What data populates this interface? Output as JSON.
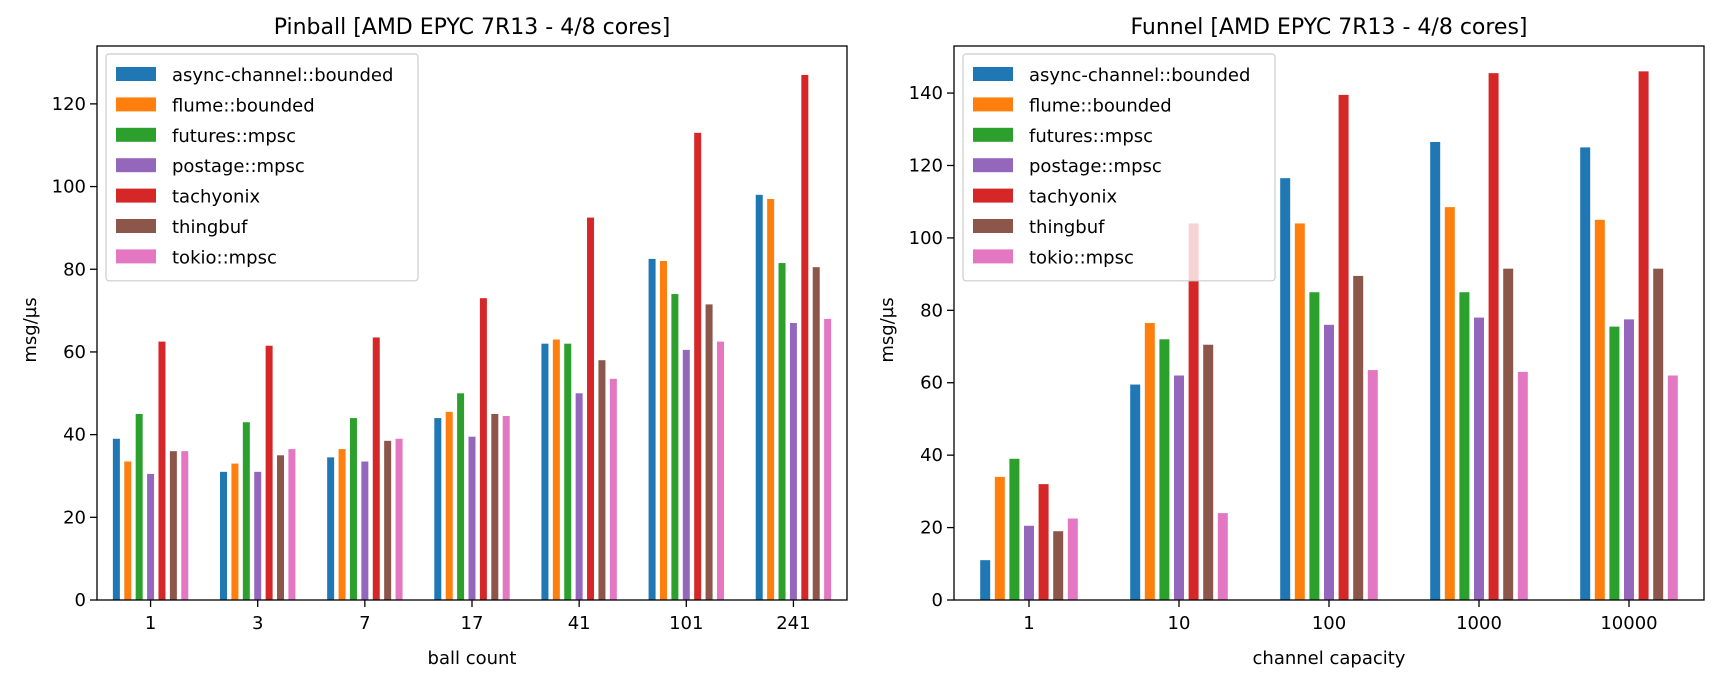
{
  "colors": {
    "async-channel::bounded": "#1f77b4",
    "flume::bounded": "#ff7f0e",
    "futures::mpsc": "#2ca02c",
    "postage::mpsc": "#9467bd",
    "tachyonix": "#d62728",
    "thingbuf": "#8c564b",
    "tokio::mpsc": "#e377c2"
  },
  "chart_data": [
    {
      "type": "bar",
      "title": "Pinball [AMD EPYC 7R13 - 4/8 cores]",
      "xlabel": "ball count",
      "ylabel": "msg/µs",
      "ylim": [
        0,
        134
      ],
      "yticks": [
        0,
        20,
        40,
        60,
        80,
        100,
        120
      ],
      "legend_position": "top-left",
      "categories": [
        "1",
        "3",
        "7",
        "17",
        "41",
        "101",
        "241"
      ],
      "series": [
        {
          "name": "async-channel::bounded",
          "values": [
            39,
            31,
            34.5,
            44,
            62,
            82.5,
            98
          ]
        },
        {
          "name": "flume::bounded",
          "values": [
            33.5,
            33,
            36.5,
            45.5,
            63,
            82,
            97
          ]
        },
        {
          "name": "futures::mpsc",
          "values": [
            45,
            43,
            44,
            50,
            62,
            74,
            81.5
          ]
        },
        {
          "name": "postage::mpsc",
          "values": [
            30.5,
            31,
            33.5,
            39.5,
            50,
            60.5,
            67
          ]
        },
        {
          "name": "tachyonix",
          "values": [
            62.5,
            61.5,
            63.5,
            73,
            92.5,
            113,
            127
          ]
        },
        {
          "name": "thingbuf",
          "values": [
            36,
            35,
            38.5,
            45,
            58,
            71.5,
            80.5
          ]
        },
        {
          "name": "tokio::mpsc",
          "values": [
            36,
            36.5,
            39,
            44.5,
            53.5,
            62.5,
            68
          ]
        }
      ]
    },
    {
      "type": "bar",
      "title": "Funnel [AMD EPYC 7R13 - 4/8 cores]",
      "xlabel": "channel capacity",
      "ylabel": "msg/µs",
      "ylim": [
        0,
        153
      ],
      "yticks": [
        0,
        20,
        40,
        60,
        80,
        100,
        120,
        140
      ],
      "legend_position": "top-left",
      "categories": [
        "1",
        "10",
        "100",
        "1000",
        "10000"
      ],
      "series": [
        {
          "name": "async-channel::bounded",
          "values": [
            11,
            59.5,
            116.5,
            126.5,
            125
          ]
        },
        {
          "name": "flume::bounded",
          "values": [
            34,
            76.5,
            104,
            108.5,
            105
          ]
        },
        {
          "name": "futures::mpsc",
          "values": [
            39,
            72,
            85,
            85,
            75.5
          ]
        },
        {
          "name": "postage::mpsc",
          "values": [
            20.5,
            62,
            76,
            78,
            77.5
          ]
        },
        {
          "name": "tachyonix",
          "values": [
            32,
            104,
            139.5,
            145.5,
            146
          ]
        },
        {
          "name": "thingbuf",
          "values": [
            19,
            70.5,
            89.5,
            91.5,
            91.5
          ]
        },
        {
          "name": "tokio::mpsc",
          "values": [
            22.5,
            24,
            63.5,
            63,
            62
          ]
        }
      ]
    }
  ]
}
